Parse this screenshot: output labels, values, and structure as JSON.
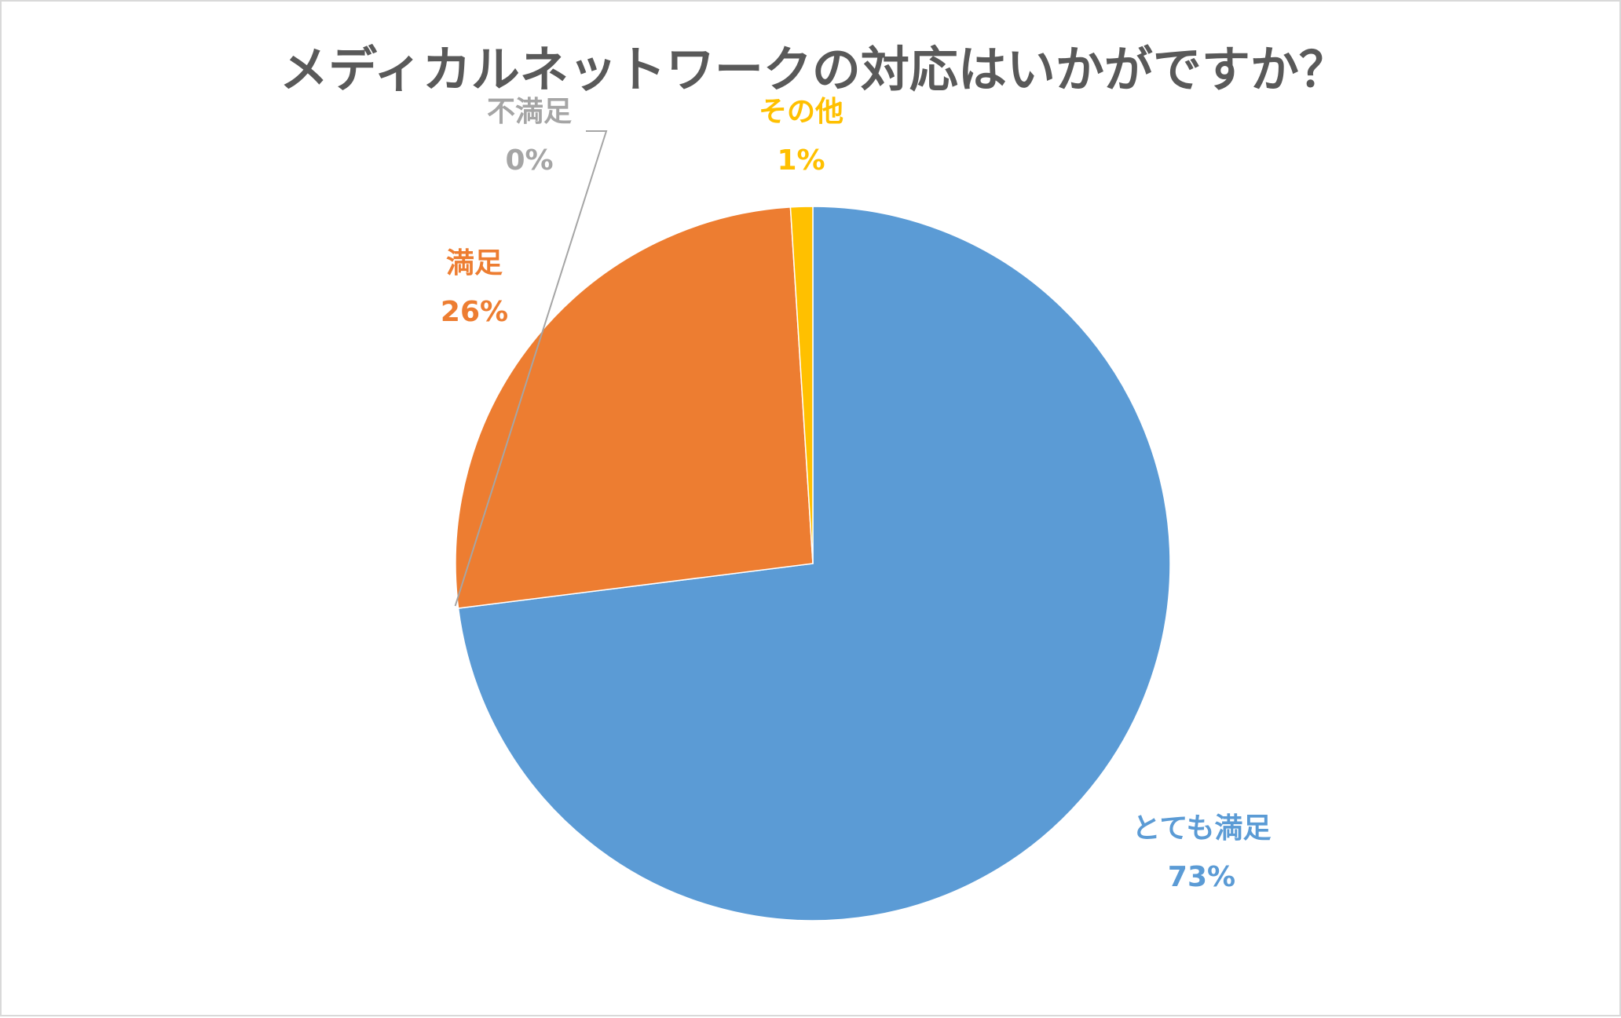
{
  "chart_data": {
    "type": "pie",
    "title": "メディカルネットワークの対応はいかがですか？",
    "start_angle_deg": 0,
    "direction": "clockwise",
    "slices": [
      {
        "label": "とても満足",
        "value": 73,
        "display": "73%",
        "color": "#5b9bd5"
      },
      {
        "label": "不満足",
        "value": 0,
        "display": "0%",
        "color": "#a5a5a5"
      },
      {
        "label": "満足",
        "value": 26,
        "display": "26%",
        "color": "#ed7d31"
      },
      {
        "label": "その他",
        "value": 1,
        "display": "1%",
        "color": "#ffc000"
      }
    ],
    "legend": "none"
  }
}
